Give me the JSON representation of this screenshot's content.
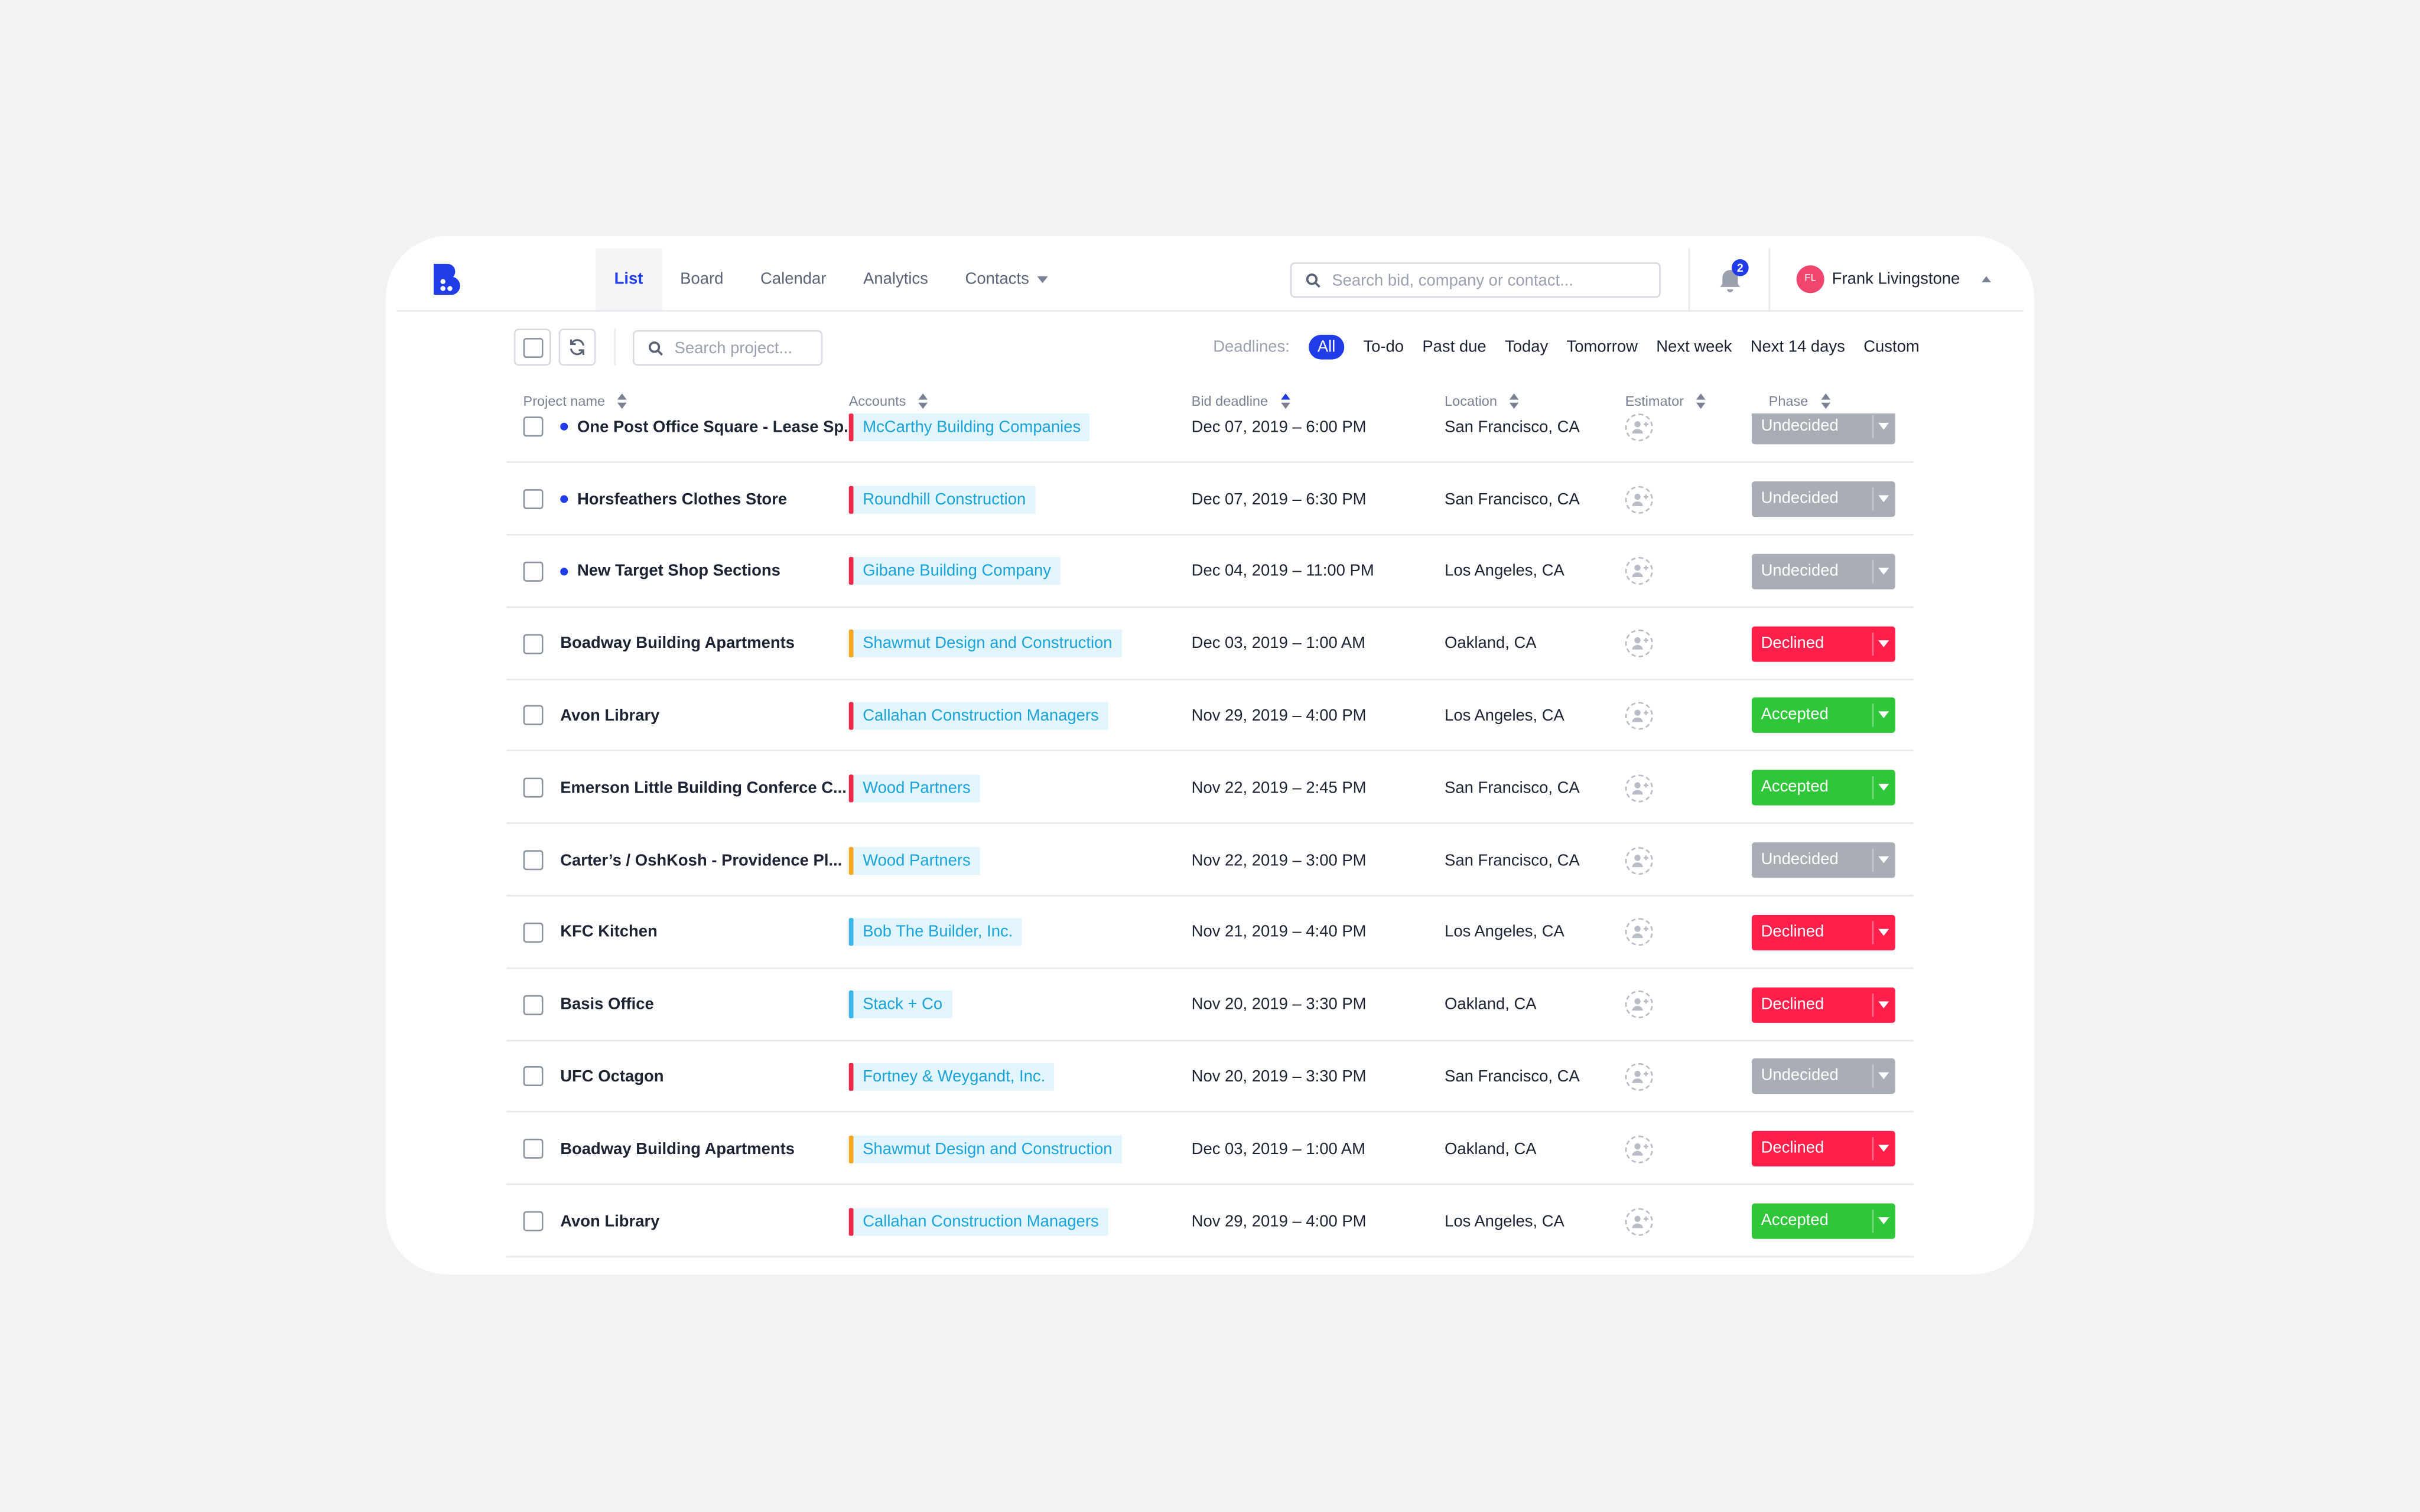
{
  "header": {
    "tabs": [
      "List",
      "Board",
      "Calendar",
      "Analytics",
      "Contacts"
    ],
    "active_tab": 0,
    "search_placeholder": "Search bid, company or contact...",
    "notifications": 2,
    "user": {
      "initials": "FL",
      "name": "Frank Livingstone"
    }
  },
  "toolbar": {
    "search_placeholder": "Search project...",
    "deadlines_label": "Deadlines:",
    "filters": [
      "All",
      "To-do",
      "Past due",
      "Today",
      "Tomorrow",
      "Next week",
      "Next 14 days",
      "Custom"
    ],
    "active_filter": 0
  },
  "table": {
    "columns": [
      "Project name",
      "Accounts",
      "Bid deadline",
      "Location",
      "Estimator",
      "Phase"
    ],
    "sorted_column": 2,
    "rows": [
      {
        "name": "One Post Office Square - Lease Sp...",
        "unread": true,
        "account": "McCarthy Building Companies",
        "account_color": "#f0284a",
        "deadline": "Dec 07, 2019 – 6:00 PM",
        "location": "San Francisco, CA",
        "phase": "Undecided",
        "phase_color": "#a9adb5"
      },
      {
        "name": "Horsfeathers Clothes Store",
        "unread": true,
        "account": "Roundhill Construction",
        "account_color": "#f0284a",
        "deadline": "Dec 07, 2019 – 6:30 PM",
        "location": "San Francisco, CA",
        "phase": "Undecided",
        "phase_color": "#a9adb5"
      },
      {
        "name": "New Target Shop Sections",
        "unread": true,
        "account": "Gibane Building Company",
        "account_color": "#f0284a",
        "deadline": "Dec 04, 2019 – 11:00 PM",
        "location": "Los Angeles, CA",
        "phase": "Undecided",
        "phase_color": "#a9adb5"
      },
      {
        "name": "Boadway Building Apartments",
        "unread": false,
        "account": "Shawmut Design and Construction",
        "account_color": "#f5a623",
        "deadline": "Dec 03, 2019 – 1:00 AM",
        "location": "Oakland, CA",
        "phase": "Declined",
        "phase_color": "#ff1f4b"
      },
      {
        "name": "Avon Library",
        "unread": false,
        "account": "Callahan Construction Managers",
        "account_color": "#f0284a",
        "deadline": "Nov 29, 2019 – 4:00 PM",
        "location": "Los Angeles, CA",
        "phase": "Accepted",
        "phase_color": "#2fc63a"
      },
      {
        "name": "Emerson Little Building Conferce C...",
        "unread": false,
        "account": "Wood Partners",
        "account_color": "#f0284a",
        "deadline": "Nov 22, 2019 – 2:45 PM",
        "location": "San Francisco, CA",
        "phase": "Accepted",
        "phase_color": "#2fc63a"
      },
      {
        "name": "Carter’s / OshKosh - Providence Pl...",
        "unread": false,
        "account": "Wood Partners",
        "account_color": "#f5a623",
        "deadline": "Nov 22, 2019 – 3:00 PM",
        "location": "San Francisco, CA",
        "phase": "Undecided",
        "phase_color": "#a9adb5"
      },
      {
        "name": "KFC Kitchen",
        "unread": false,
        "account": "Bob The Builder, Inc.",
        "account_color": "#3bb6e8",
        "deadline": "Nov 21, 2019 – 4:40 PM",
        "location": "Los Angeles, CA",
        "phase": "Declined",
        "phase_color": "#ff1f4b"
      },
      {
        "name": "Basis Office",
        "unread": false,
        "account": "Stack + Co",
        "account_color": "#3bb6e8",
        "deadline": "Nov 20, 2019 – 3:30 PM",
        "location": "Oakland, CA",
        "phase": "Declined",
        "phase_color": "#ff1f4b"
      },
      {
        "name": "UFC Octagon",
        "unread": false,
        "account": "Fortney & Weygandt, Inc.",
        "account_color": "#f0284a",
        "deadline": "Nov 20, 2019 – 3:30 PM",
        "location": "San Francisco, CA",
        "phase": "Undecided",
        "phase_color": "#a9adb5"
      },
      {
        "name": "Boadway Building Apartments",
        "unread": false,
        "account": "Shawmut Design and Construction",
        "account_color": "#f5a623",
        "deadline": "Dec 03, 2019 – 1:00 AM",
        "location": "Oakland, CA",
        "phase": "Declined",
        "phase_color": "#ff1f4b"
      },
      {
        "name": "Avon Library",
        "unread": false,
        "account": "Callahan Construction Managers",
        "account_color": "#f0284a",
        "deadline": "Nov 29, 2019 – 4:00 PM",
        "location": "Los Angeles, CA",
        "phase": "Accepted",
        "phase_color": "#2fc63a"
      }
    ]
  }
}
